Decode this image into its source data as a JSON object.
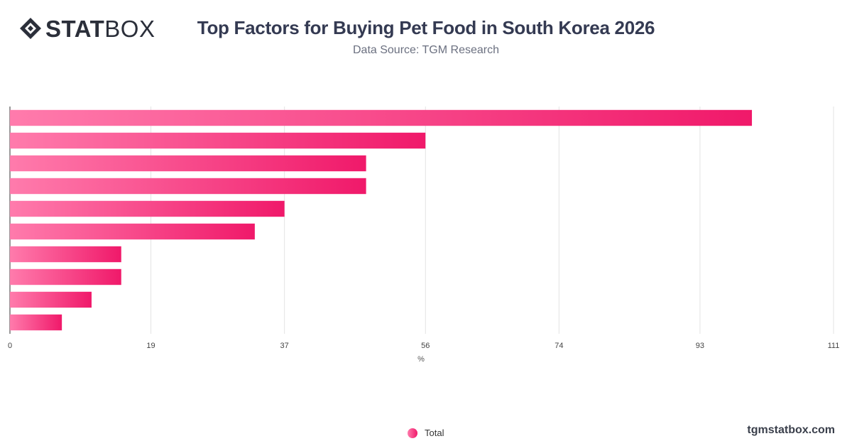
{
  "brand": {
    "logo_bold": "STAT",
    "logo_light": "BOX",
    "website": "tgmstatbox.com"
  },
  "header": {
    "title": "Top Factors for Buying Pet Food in South Korea 2026",
    "subtitle": "Data Source: TGM Research"
  },
  "legend": {
    "label": "Total"
  },
  "colors": {
    "bar_start": "#ff7bac",
    "bar_end": "#f0196a",
    "grid": "#e3e3e3",
    "axis": "#333333"
  },
  "chart_data": {
    "type": "bar",
    "orientation": "horizontal",
    "categories": [
      "",
      "",
      "",
      "",
      "",
      "",
      "",
      "",
      "",
      ""
    ],
    "series": [
      {
        "name": "Total",
        "values": [
          100,
          56,
          48,
          48,
          37,
          33,
          15,
          15,
          11,
          7
        ]
      }
    ],
    "xlabel": "%",
    "ylabel": "",
    "xlim": [
      0,
      111
    ],
    "x_ticks": [
      "0",
      "19",
      "37",
      "56",
      "74",
      "93",
      "111"
    ],
    "grid": true,
    "legend_position": "bottom-center"
  }
}
